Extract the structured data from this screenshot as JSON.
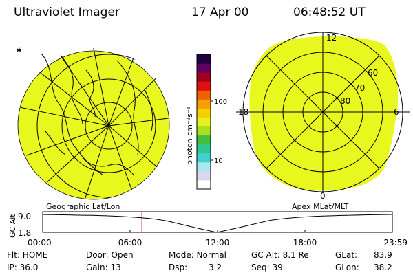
{
  "header": {
    "instrument": "Ultraviolet Imager",
    "date": "17 Apr 00",
    "time": "06:48:52 UT"
  },
  "colorbar": {
    "unit": "photon cm⁻²s⁻¹",
    "ticks": [
      "100",
      "10"
    ],
    "colors": [
      "#ffffff",
      "#d8d8f0",
      "#a8e8f0",
      "#40d0d0",
      "#30c890",
      "#40c040",
      "#a8e020",
      "#e8f020",
      "#f8d000",
      "#f8a000",
      "#f06000",
      "#e01010",
      "#a00020",
      "#600060",
      "#200040"
    ]
  },
  "geo_panel": {
    "label": "Geographic Lat/Lon",
    "fill_color": "#e8f81e"
  },
  "mlt_panel": {
    "label": "Apex MLat/MLT",
    "mlt_labels": {
      "top": "12",
      "left": "18",
      "right": "6",
      "bottom": "0"
    },
    "lat_labels": [
      "60",
      "70",
      "80"
    ],
    "fill_color": "#e8f81e"
  },
  "alt_plot": {
    "ylabel": "GC Alt",
    "ymax": "9.0",
    "ymin": "1.8",
    "x_ticks": [
      "00:00",
      "06:00",
      "12:00",
      "18:00",
      "23:59"
    ],
    "current_hour": 6.81
  },
  "info": {
    "flt": "Flt: HOME",
    "ip": "IP: 36.0",
    "door": "Door: Open",
    "gain": "Gain: 13",
    "mode": "Mode: Normal",
    "dsp_label": "Dsp:",
    "dsp_value": "3.2",
    "gc_alt": "GC Alt: 8.1 Re",
    "seq": "Seq: 39",
    "glat_label": "GLat:",
    "glat_value": "83.9",
    "glon_label": "GLon:",
    "glon_value": "38.2"
  }
}
